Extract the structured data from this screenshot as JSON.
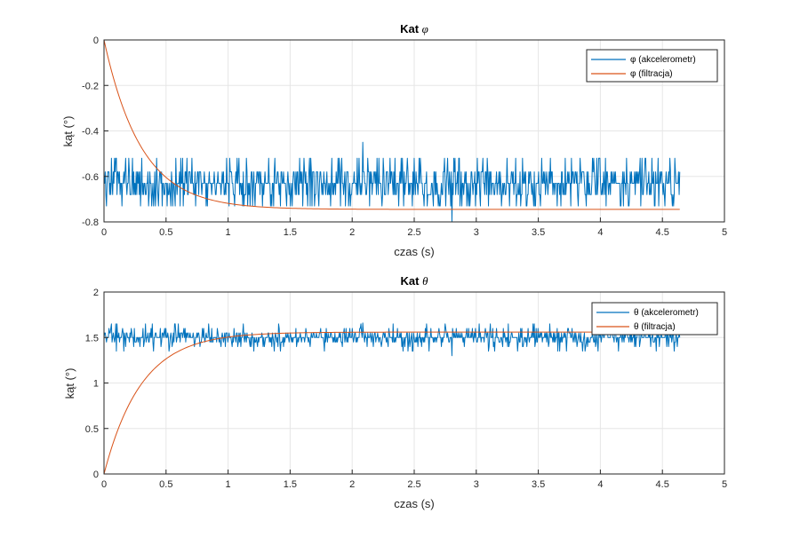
{
  "chart_data": [
    {
      "type": "line",
      "title_prefix": "Kat ",
      "title_symbol": "φ",
      "xlabel": "czas (s)",
      "ylabel": "kąt (°)",
      "xlim": [
        0,
        5
      ],
      "ylim": [
        -0.8,
        0
      ],
      "x_ticks": [
        0,
        0.5,
        1,
        1.5,
        2,
        2.5,
        3,
        3.5,
        4,
        4.5,
        5
      ],
      "x_tick_labels": [
        "0",
        "0.5",
        "1",
        "1.5",
        "2",
        "2.5",
        "3",
        "3.5",
        "4",
        "4.5",
        "5"
      ],
      "y_ticks": [
        0,
        -0.2,
        -0.4,
        -0.6,
        -0.8
      ],
      "y_tick_labels": [
        "0",
        "-0.2",
        "-0.4",
        "-0.6",
        "-0.8"
      ],
      "grid": true,
      "legend_position": "top-right",
      "series": [
        {
          "name": "φ (akcelerometr)",
          "color": "#0072BD",
          "style": "noisy",
          "x_end": 4.64,
          "levels": [
            -0.63,
            -0.58,
            -0.68,
            -0.73,
            -0.52
          ],
          "level_weights": [
            0.4,
            0.22,
            0.2,
            0.1,
            0.08
          ],
          "min": -0.8,
          "max": -0.45,
          "values_sample": [
            {
              "x": 0,
              "y": -0.63
            },
            {
              "x": 0.5,
              "y": -0.58
            },
            {
              "x": 1.0,
              "y": -0.68
            },
            {
              "x": 2.1,
              "y": -0.45
            },
            {
              "x": 2.8,
              "y": -0.8
            },
            {
              "x": 4.64,
              "y": -0.68
            }
          ]
        },
        {
          "name": "φ (filtracja)",
          "color": "#D95319",
          "style": "exp",
          "x_end": 4.64,
          "y0": 0,
          "y_final": -0.745,
          "tau": 0.3,
          "values_sample": [
            {
              "x": 0,
              "y": 0
            },
            {
              "x": 0.25,
              "y": -0.42
            },
            {
              "x": 0.5,
              "y": -0.6
            },
            {
              "x": 1.0,
              "y": -0.72
            },
            {
              "x": 2.0,
              "y": -0.74
            },
            {
              "x": 4.64,
              "y": -0.745
            }
          ]
        }
      ]
    },
    {
      "type": "line",
      "title_prefix": "Kat ",
      "title_symbol": "θ",
      "xlabel": "czas (s)",
      "ylabel": "kąt (°)",
      "xlim": [
        0,
        5
      ],
      "ylim": [
        0,
        2
      ],
      "x_ticks": [
        0,
        0.5,
        1,
        1.5,
        2,
        2.5,
        3,
        3.5,
        4,
        4.5,
        5
      ],
      "x_tick_labels": [
        "0",
        "0.5",
        "1",
        "1.5",
        "2",
        "2.5",
        "3",
        "3.5",
        "4",
        "4.5",
        "5"
      ],
      "y_ticks": [
        0,
        0.5,
        1,
        1.5,
        2
      ],
      "y_tick_labels": [
        "0",
        "0.5",
        "1",
        "1.5",
        "2"
      ],
      "grid": true,
      "legend_position": "top-right",
      "series": [
        {
          "name": "θ (akcelerometr)",
          "color": "#0072BD",
          "style": "noisy",
          "x_end": 4.64,
          "levels": [
            1.5,
            1.55,
            1.45,
            1.6,
            1.4,
            1.35,
            1.65
          ],
          "level_weights": [
            0.42,
            0.2,
            0.2,
            0.07,
            0.06,
            0.025,
            0.025
          ],
          "min": 1.3,
          "max": 1.66,
          "values_sample": [
            {
              "x": 0,
              "y": 1.5
            },
            {
              "x": 1.0,
              "y": 1.55
            },
            {
              "x": 2.0,
              "y": 1.45
            },
            {
              "x": 3.0,
              "y": 1.6
            },
            {
              "x": 4.0,
              "y": 1.5
            },
            {
              "x": 4.64,
              "y": 1.55
            }
          ]
        },
        {
          "name": "θ (filtracja)",
          "color": "#D95319",
          "style": "exp",
          "x_end": 4.64,
          "y0": 0,
          "y_final": 1.56,
          "tau": 0.3,
          "values_sample": [
            {
              "x": 0,
              "y": 0
            },
            {
              "x": 0.25,
              "y": 0.88
            },
            {
              "x": 0.5,
              "y": 1.26
            },
            {
              "x": 1.0,
              "y": 1.5
            },
            {
              "x": 2.0,
              "y": 1.56
            },
            {
              "x": 4.64,
              "y": 1.56
            }
          ]
        }
      ]
    }
  ]
}
